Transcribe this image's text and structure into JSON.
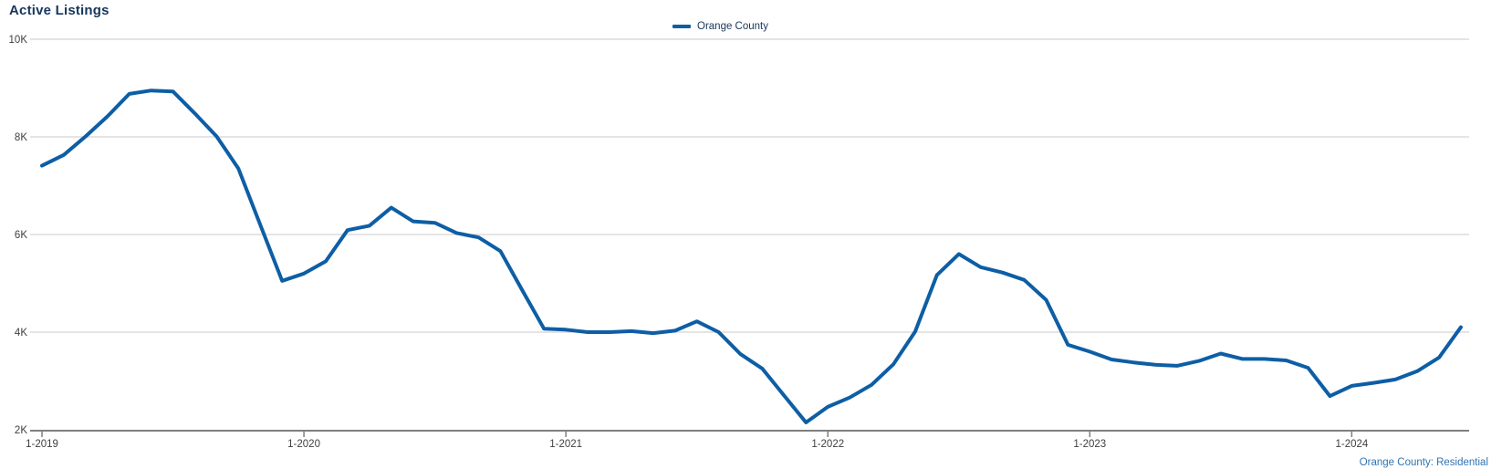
{
  "header": {
    "title": "Active Listings"
  },
  "legend": {
    "series_label": "Orange County"
  },
  "footer": {
    "note": "Orange County: Residential"
  },
  "colors": {
    "line": "#0D5EA5",
    "title_text": "#17365D",
    "legend_text": "#17365D",
    "footer_text": "#2E74B5",
    "gridline": "#C9C9C9",
    "axis_line": "#7F7F7F",
    "tick_text": "#404040"
  },
  "chart_data": {
    "type": "line",
    "title": "Active Listings",
    "xlabel": "",
    "ylabel": "",
    "ylim": [
      2000,
      10000
    ],
    "y_tick_values": [
      2000,
      4000,
      6000,
      8000,
      10000
    ],
    "y_tick_labels": [
      "2K",
      "4K",
      "6K",
      "8K",
      "10K"
    ],
    "x_tick_labels": [
      "1-2019",
      "1-2020",
      "1-2021",
      "1-2022",
      "1-2023",
      "1-2024"
    ],
    "x_start": "2019-01",
    "x_end": "2024-06",
    "x_interval": "month",
    "grid": "horizontal",
    "legend_position": "top-center",
    "series": [
      {
        "name": "Orange County",
        "values": [
          7410,
          7630,
          8010,
          8420,
          8880,
          8950,
          8930,
          8480,
          8010,
          7350,
          6200,
          5050,
          5200,
          5450,
          6090,
          6180,
          6550,
          6270,
          6240,
          6030,
          5940,
          5660,
          4860,
          4070,
          4050,
          4000,
          4000,
          4020,
          3980,
          4030,
          4220,
          4000,
          3550,
          3250,
          2700,
          2150,
          2470,
          2660,
          2920,
          3340,
          4010,
          5170,
          5600,
          5330,
          5220,
          5070,
          4660,
          3740,
          3600,
          3440,
          3380,
          3330,
          3310,
          3410,
          3560,
          3450,
          3450,
          3420,
          3270,
          2690,
          2900,
          2960,
          3030,
          3200,
          3480,
          4100
        ]
      }
    ]
  }
}
